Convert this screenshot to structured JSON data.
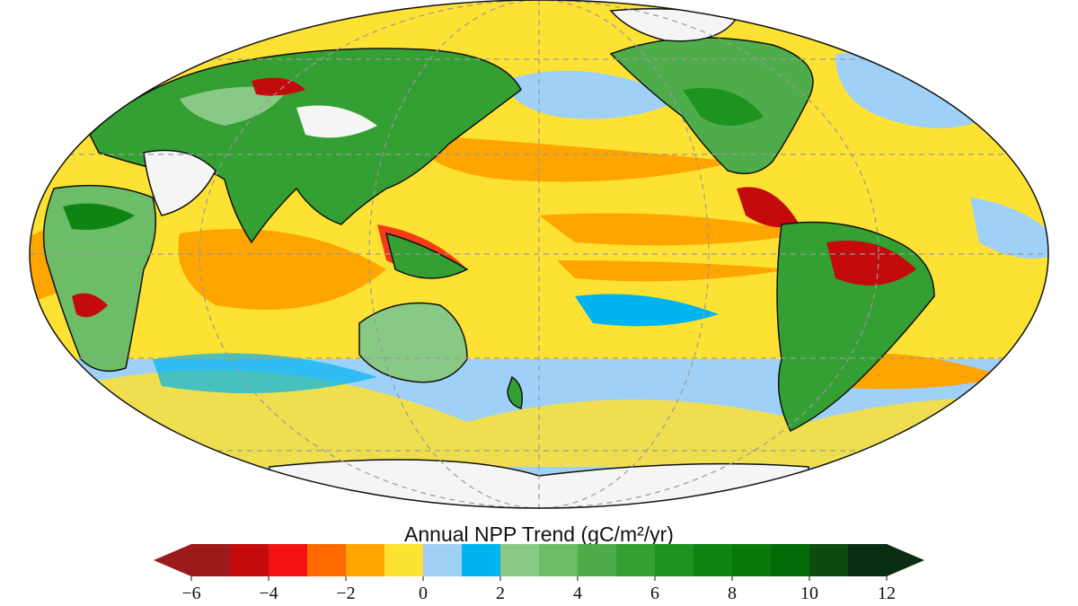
{
  "map": {
    "projection": "mollweide",
    "central_longitude": 150,
    "graticule": "dashed",
    "colors": {
      "ocean_base": "#fde233",
      "land_no_data": "#f5f5f5",
      "coastline": "#111111",
      "graticule": "#9a9a9a"
    }
  },
  "colorbar": {
    "title": "Annual NPP Trend (gC/m²/yr)",
    "min": -6,
    "max": 12,
    "step": 1,
    "extend": "both",
    "colors": [
      "#9e1a1a",
      "#c40b0b",
      "#f21212",
      "#ff6a00",
      "#ffa500",
      "#fde233",
      "#9fd0f7",
      "#00b4ef",
      "#88c986",
      "#6cbc68",
      "#4fac4a",
      "#34a033",
      "#1e9420",
      "#0e8512",
      "#087a0c",
      "#056a08",
      "#0a4d0c",
      "#0a2d14"
    ],
    "ticks": [
      "−6",
      "−4",
      "−2",
      "0",
      "2",
      "4",
      "6",
      "8",
      "10",
      "12"
    ]
  }
}
